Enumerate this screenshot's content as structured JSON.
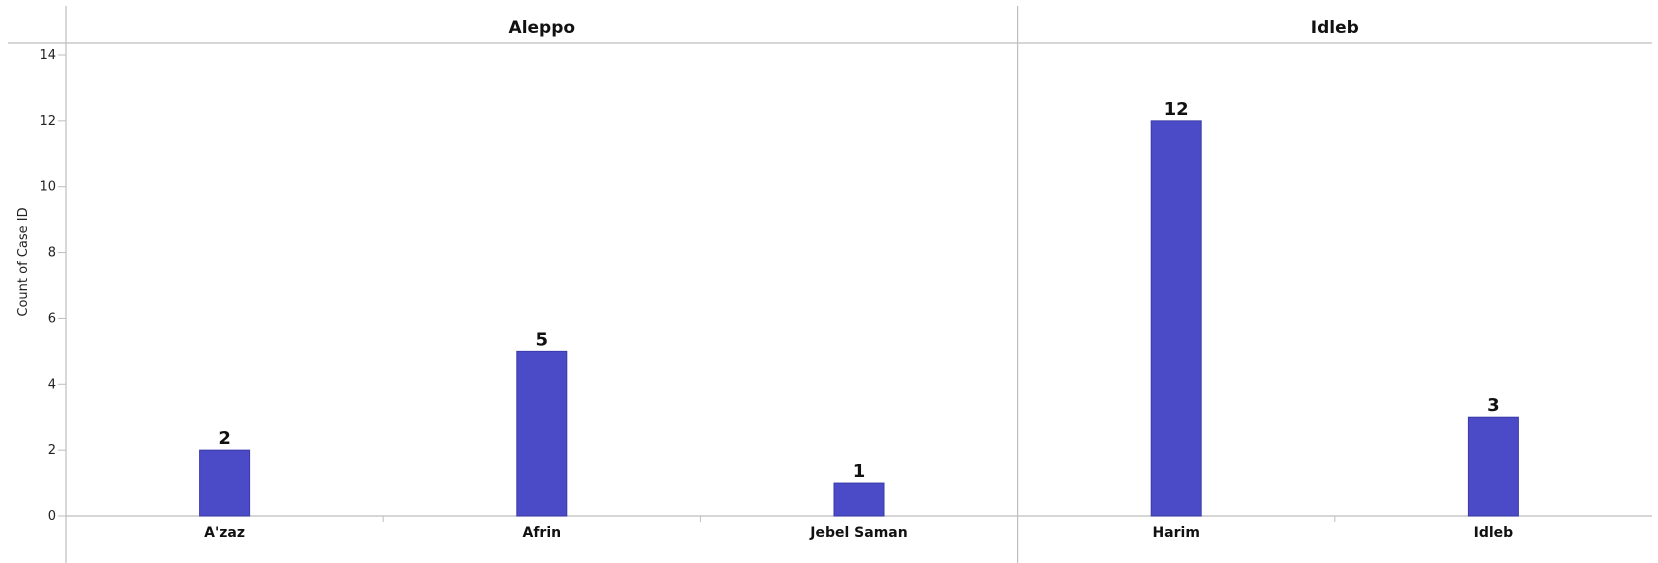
{
  "chart_data": {
    "type": "bar",
    "title": "",
    "ylabel": "Count of Case ID",
    "ylim": [
      0,
      14
    ],
    "yticks": [
      0,
      2,
      4,
      6,
      8,
      10,
      12,
      14
    ],
    "bar_color": "#4b4bc8",
    "grid": false,
    "panels": [
      {
        "name": "Aleppo",
        "categories": [
          "A'zaz",
          "Afrin",
          "Jebel Saman"
        ],
        "values": [
          2,
          5,
          1
        ]
      },
      {
        "name": "Idleb",
        "categories": [
          "Harim",
          "Idleb"
        ],
        "values": [
          12,
          3
        ]
      }
    ]
  }
}
